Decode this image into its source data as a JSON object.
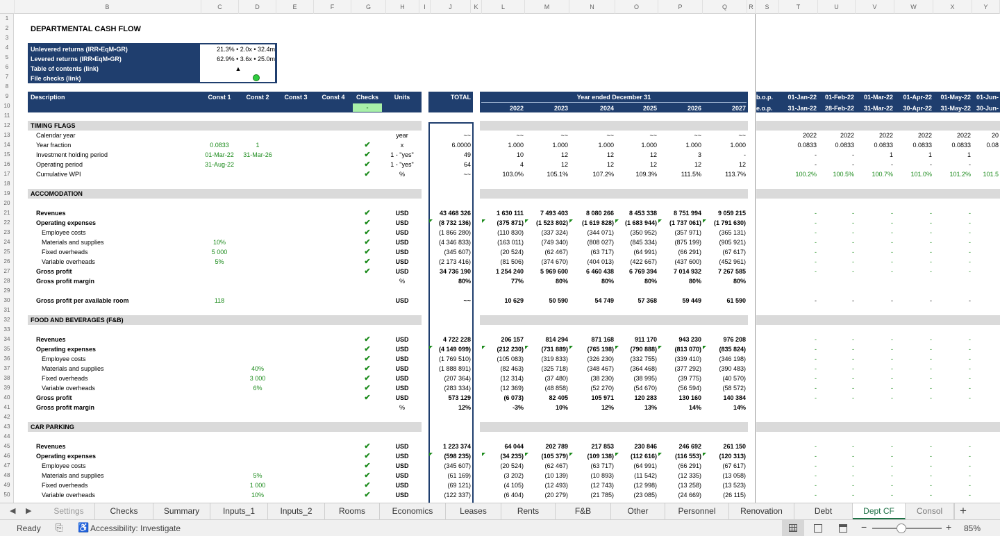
{
  "columns": [
    "A",
    "B",
    "C",
    "D",
    "E",
    "F",
    "G",
    "H",
    "I",
    "J",
    "K",
    "L",
    "M",
    "N",
    "O",
    "P",
    "Q",
    "R",
    "S",
    "T",
    "U",
    "V",
    "W",
    "X",
    "Y"
  ],
  "title": "DEPARTMENTAL CASH FLOW",
  "summary": [
    {
      "label": "Unlevered returns (IRR•EqM•GR)",
      "value": "21.3% • 2.0x • 32.4m"
    },
    {
      "label": "Levered returns (IRR•EqM•GR)",
      "value": "62.9% • 3.6x • 25.0m"
    },
    {
      "label": "Table of contents (link)",
      "value": "▲"
    },
    {
      "label": "File checks (link)",
      "value": ""
    }
  ],
  "header": {
    "description": "Description",
    "const1": "Const 1",
    "const2": "Const 2",
    "const3": "Const 3",
    "const4": "Const 4",
    "checks": "Checks",
    "checks_value": "-",
    "units": "Units",
    "total": "TOTAL",
    "year_ended": "Year ended December 31",
    "years": [
      "2022",
      "2023",
      "2024",
      "2025",
      "2026",
      "2027"
    ],
    "bop": "b.o.p.",
    "eop": "e.o.p.",
    "month_starts": [
      "01-Jan-22",
      "01-Feb-22",
      "01-Mar-22",
      "01-Apr-22",
      "01-May-22",
      "01-Jun-"
    ],
    "month_ends": [
      "31-Jan-22",
      "28-Feb-22",
      "31-Mar-22",
      "30-Apr-22",
      "31-May-22",
      "30-Jun-"
    ]
  },
  "rows": [
    {
      "n": 12,
      "section": "TIMING FLAGS"
    },
    {
      "n": 13,
      "label": "Calendar year",
      "units": "year",
      "total": "~~",
      "years": [
        "~~",
        "~~",
        "~~",
        "~~",
        "~~",
        "~~"
      ],
      "months": [
        "2022",
        "2022",
        "2022",
        "2022",
        "2022",
        "20"
      ]
    },
    {
      "n": 14,
      "label": "Year fraction",
      "c1": "0.0833",
      "c2": "1",
      "check": true,
      "units": "x",
      "total": "6.0000",
      "years": [
        "1.000",
        "1.000",
        "1.000",
        "1.000",
        "1.000",
        "1.000"
      ],
      "months": [
        "0.0833",
        "0.0833",
        "0.0833",
        "0.0833",
        "0.0833",
        "0.08"
      ]
    },
    {
      "n": 15,
      "label": "Investment holding period",
      "c1": "01-Mar-22",
      "c2": "31-Mar-26",
      "check": true,
      "units": "1 - \"yes\"",
      "total": "49",
      "years": [
        "10",
        "12",
        "12",
        "12",
        "3",
        "-"
      ],
      "months": [
        "-",
        "-",
        "1",
        "1",
        "1",
        ""
      ]
    },
    {
      "n": 16,
      "label": "Operating period",
      "c1": "31-Aug-22",
      "check": true,
      "units": "1 - \"yes\"",
      "total": "64",
      "years": [
        "4",
        "12",
        "12",
        "12",
        "12",
        "12"
      ],
      "months": [
        "-",
        "-",
        "-",
        "-",
        "-",
        ""
      ]
    },
    {
      "n": 17,
      "label": "Cumulative WPI",
      "check": true,
      "units": "%",
      "total": "~~",
      "years": [
        "103.0%",
        "105.1%",
        "107.2%",
        "109.3%",
        "111.5%",
        "113.7%"
      ],
      "months": [
        "100.2%",
        "100.5%",
        "100.7%",
        "101.0%",
        "101.2%",
        "101.5"
      ],
      "mgreen": true
    },
    {
      "n": 19,
      "section": "ACCOMODATION"
    },
    {
      "n": 21,
      "label": "Revenues",
      "bold": true,
      "check": true,
      "units": "USD",
      "total": "43 468 326",
      "years": [
        "1 630 111",
        "7 493 403",
        "8 080 266",
        "8 453 338",
        "8 751 994",
        "9 059 215"
      ],
      "months": [
        "-",
        "-",
        "-",
        "-",
        "-",
        ""
      ],
      "mgreen": true
    },
    {
      "n": 22,
      "label": "Operating expenses",
      "bold": true,
      "check": true,
      "units": "USD",
      "total": "(8 732 136)",
      "years": [
        "(375 871)",
        "(1 523 802)",
        "(1 619 828)",
        "(1 683 944)",
        "(1 737 061)",
        "(1 791 630)"
      ],
      "months": [
        "-",
        "-",
        "-",
        "-",
        "-",
        ""
      ],
      "mgreen": true,
      "flags": true
    },
    {
      "n": 23,
      "label": "Employee costs",
      "indent": true,
      "check": true,
      "units": "USD",
      "total": "(1 866 280)",
      "years": [
        "(110 830)",
        "(337 324)",
        "(344 071)",
        "(350 952)",
        "(357 971)",
        "(365 131)"
      ],
      "months": [
        "-",
        "-",
        "-",
        "-",
        "-",
        ""
      ],
      "mgreen": true
    },
    {
      "n": 24,
      "label": "Materials and supplies",
      "indent": true,
      "c1": "10%",
      "check": true,
      "units": "USD",
      "total": "(4 346 833)",
      "years": [
        "(163 011)",
        "(749 340)",
        "(808 027)",
        "(845 334)",
        "(875 199)",
        "(905 921)"
      ],
      "months": [
        "-",
        "-",
        "-",
        "-",
        "-",
        ""
      ],
      "mgreen": true
    },
    {
      "n": 25,
      "label": "Fixed overheads",
      "indent": true,
      "c1": "5 000",
      "check": true,
      "units": "USD",
      "total": "(345 607)",
      "years": [
        "(20 524)",
        "(62 467)",
        "(63 717)",
        "(64 991)",
        "(66 291)",
        "(67 617)"
      ],
      "months": [
        "-",
        "-",
        "-",
        "-",
        "-",
        ""
      ],
      "mgreen": true
    },
    {
      "n": 26,
      "label": "Variable overheads",
      "indent": true,
      "c1": "5%",
      "check": true,
      "units": "USD",
      "total": "(2 173 416)",
      "years": [
        "(81 506)",
        "(374 670)",
        "(404 013)",
        "(422 667)",
        "(437 600)",
        "(452 961)"
      ],
      "months": [
        "-",
        "-",
        "-",
        "-",
        "-",
        ""
      ],
      "mgreen": true
    },
    {
      "n": 27,
      "label": "Gross profit",
      "bold": true,
      "check": true,
      "units": "USD",
      "total": "34 736 190",
      "years": [
        "1 254 240",
        "5 969 600",
        "6 460 438",
        "6 769 394",
        "7 014 932",
        "7 267 585"
      ],
      "months": [
        "-",
        "-",
        "-",
        "-",
        "-",
        ""
      ],
      "mgreen": true
    },
    {
      "n": 28,
      "label": "Gross profit margin",
      "bold": true,
      "units": "%",
      "total": "80%",
      "years": [
        "77%",
        "80%",
        "80%",
        "80%",
        "80%",
        "80%"
      ]
    },
    {
      "n": 30,
      "label": "Gross profit per available room",
      "bold": true,
      "c1": "118",
      "units": "USD",
      "total": "~~",
      "years": [
        "10 629",
        "50 590",
        "54 749",
        "57 368",
        "59 449",
        "61 590"
      ],
      "months": [
        "-",
        "-",
        "-",
        "-",
        "-",
        ""
      ]
    },
    {
      "n": 32,
      "section": "FOOD AND BEVERAGES (F&B)"
    },
    {
      "n": 34,
      "label": "Revenues",
      "bold": true,
      "check": true,
      "units": "USD",
      "total": "4 722 228",
      "years": [
        "206 157",
        "814 294",
        "871 168",
        "911 170",
        "943 230",
        "976 208"
      ],
      "months": [
        "-",
        "-",
        "-",
        "-",
        "-",
        ""
      ],
      "mgreen": true
    },
    {
      "n": 35,
      "label": "Operating expenses",
      "bold": true,
      "check": true,
      "units": "USD",
      "total": "(4 149 099)",
      "years": [
        "(212 230)",
        "(731 889)",
        "(765 198)",
        "(790 888)",
        "(813 070)",
        "(835 824)"
      ],
      "months": [
        "-",
        "-",
        "-",
        "-",
        "-",
        ""
      ],
      "mgreen": true,
      "flags": true
    },
    {
      "n": 36,
      "label": "Employee costs",
      "indent": true,
      "check": true,
      "units": "USD",
      "total": "(1 769 510)",
      "years": [
        "(105 083)",
        "(319 833)",
        "(326 230)",
        "(332 755)",
        "(339 410)",
        "(346 198)"
      ],
      "months": [
        "-",
        "-",
        "-",
        "-",
        "-",
        ""
      ],
      "mgreen": true
    },
    {
      "n": 37,
      "label": "Materials and supplies",
      "indent": true,
      "c2": "40%",
      "check": true,
      "units": "USD",
      "total": "(1 888 891)",
      "years": [
        "(82 463)",
        "(325 718)",
        "(348 467)",
        "(364 468)",
        "(377 292)",
        "(390 483)"
      ],
      "months": [
        "-",
        "-",
        "-",
        "-",
        "-",
        ""
      ],
      "mgreen": true
    },
    {
      "n": 38,
      "label": "Fixed overheads",
      "indent": true,
      "c2": "3 000",
      "check": true,
      "units": "USD",
      "total": "(207 364)",
      "years": [
        "(12 314)",
        "(37 480)",
        "(38 230)",
        "(38 995)",
        "(39 775)",
        "(40 570)"
      ],
      "months": [
        "-",
        "-",
        "-",
        "-",
        "-",
        ""
      ],
      "mgreen": true
    },
    {
      "n": 39,
      "label": "Variable overheads",
      "indent": true,
      "c2": "6%",
      "check": true,
      "units": "USD",
      "total": "(283 334)",
      "years": [
        "(12 369)",
        "(48 858)",
        "(52 270)",
        "(54 670)",
        "(56 594)",
        "(58 572)"
      ],
      "months": [
        "-",
        "-",
        "-",
        "-",
        "-",
        ""
      ],
      "mgreen": true
    },
    {
      "n": 40,
      "label": "Gross profit",
      "bold": true,
      "check": true,
      "units": "USD",
      "total": "573 129",
      "years": [
        "(6 073)",
        "82 405",
        "105 971",
        "120 283",
        "130 160",
        "140 384"
      ],
      "months": [
        "-",
        "-",
        "-",
        "-",
        "-",
        ""
      ],
      "mgreen": true
    },
    {
      "n": 41,
      "label": "Gross profit margin",
      "bold": true,
      "units": "%",
      "total": "12%",
      "years": [
        "-3%",
        "10%",
        "12%",
        "13%",
        "14%",
        "14%"
      ]
    },
    {
      "n": 43,
      "section": "CAR PARKING"
    },
    {
      "n": 45,
      "label": "Revenues",
      "bold": true,
      "check": true,
      "units": "USD",
      "total": "1 223 374",
      "years": [
        "64 044",
        "202 789",
        "217 853",
        "230 846",
        "246 692",
        "261 150"
      ],
      "months": [
        "-",
        "-",
        "-",
        "-",
        "-",
        ""
      ],
      "mgreen": true
    },
    {
      "n": 46,
      "label": "Operating expenses",
      "bold": true,
      "check": true,
      "units": "USD",
      "total": "(598 235)",
      "years": [
        "(34 235)",
        "(105 379)",
        "(109 138)",
        "(112 616)",
        "(116 553)",
        "(120 313)"
      ],
      "months": [
        "-",
        "-",
        "-",
        "-",
        "-",
        ""
      ],
      "mgreen": true,
      "flags": true
    },
    {
      "n": 47,
      "label": "Employee costs",
      "indent": true,
      "check": true,
      "units": "USD",
      "total": "(345 607)",
      "years": [
        "(20 524)",
        "(62 467)",
        "(63 717)",
        "(64 991)",
        "(66 291)",
        "(67 617)"
      ],
      "months": [
        "-",
        "-",
        "-",
        "-",
        "-",
        ""
      ],
      "mgreen": true
    },
    {
      "n": 48,
      "label": "Materials and supplies",
      "indent": true,
      "c2": "5%",
      "check": true,
      "units": "USD",
      "total": "(61 169)",
      "years": [
        "(3 202)",
        "(10 139)",
        "(10 893)",
        "(11 542)",
        "(12 335)",
        "(13 058)"
      ],
      "months": [
        "-",
        "-",
        "-",
        "-",
        "-",
        ""
      ],
      "mgreen": true
    },
    {
      "n": 49,
      "label": "Fixed overheads",
      "indent": true,
      "c2": "1 000",
      "check": true,
      "units": "USD",
      "total": "(69 121)",
      "years": [
        "(4 105)",
        "(12 493)",
        "(12 743)",
        "(12 998)",
        "(13 258)",
        "(13 523)"
      ],
      "months": [
        "-",
        "-",
        "-",
        "-",
        "-",
        ""
      ],
      "mgreen": true
    },
    {
      "n": 50,
      "label": "Variable overheads",
      "indent": true,
      "c2": "10%",
      "check": true,
      "units": "USD",
      "total": "(122 337)",
      "years": [
        "(6 404)",
        "(20 279)",
        "(21 785)",
        "(23 085)",
        "(24 669)",
        "(26 115)"
      ],
      "months": [
        "-",
        "-",
        "-",
        "-",
        "-",
        ""
      ],
      "mgreen": true
    }
  ],
  "tabs": [
    "Settings",
    "Checks",
    "Summary",
    "Inputs_1",
    "Inputs_2",
    "Rooms",
    "Economics",
    "Leases",
    "Rents",
    "F&B",
    "Other",
    "Personnel",
    "Renovation",
    "Debt",
    "Dept CF",
    "Consol"
  ],
  "active_tab": "Dept CF",
  "status": {
    "ready": "Ready",
    "accessibility": "Accessibility: Investigate",
    "zoom": "85%"
  }
}
